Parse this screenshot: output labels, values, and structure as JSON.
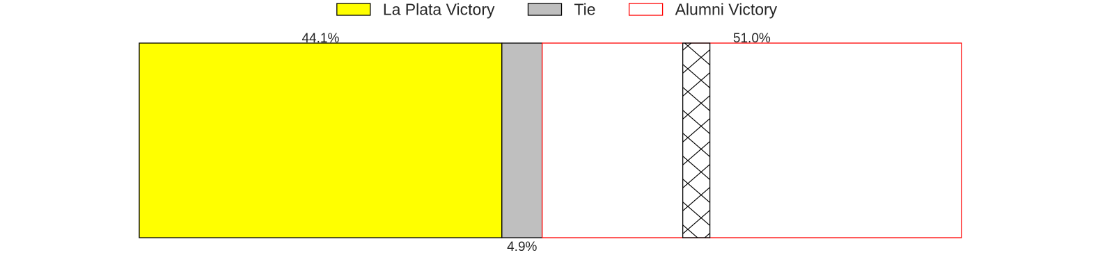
{
  "chart_data": {
    "type": "bar",
    "orientation": "horizontal",
    "stacked": true,
    "normalized": true,
    "xlim": [
      0,
      100
    ],
    "grid": false,
    "legend_position": "top-center",
    "series": [
      {
        "name": "La Plata Victory",
        "value": 44.1,
        "label": "44.1%",
        "label_position": "above",
        "fill": "#ffff00",
        "edge": "#000000"
      },
      {
        "name": "Tie",
        "value": 4.9,
        "label": "4.9%",
        "label_position": "below",
        "fill": "#bfbfbf",
        "edge": "#000000"
      },
      {
        "name": "Alumni Victory",
        "value": 51.0,
        "label": "51.0%",
        "label_position": "above",
        "fill": "#ffffff",
        "edge": "#ff0000"
      }
    ],
    "annotation": {
      "description": "cross-hatched narrow band",
      "x_start": 66.1,
      "x_end": 69.4,
      "edge": "#000000",
      "pattern": "crosshatch"
    }
  }
}
